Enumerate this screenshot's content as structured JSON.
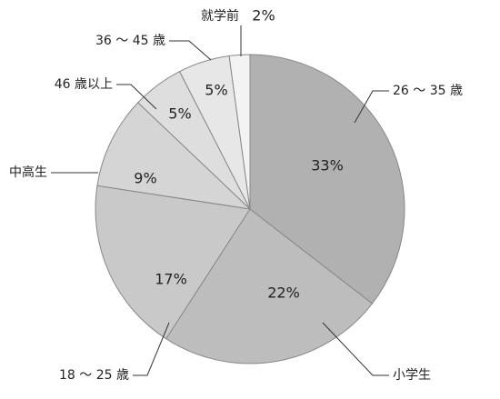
{
  "chart_data": {
    "type": "pie",
    "categories": [
      "26 〜 35 歳",
      "小学生",
      "18 〜 25 歳",
      "中高生",
      "46 歳以上",
      "36 〜 45 歳",
      "就学前"
    ],
    "values": [
      33,
      22,
      17,
      9,
      5,
      5,
      2
    ],
    "value_labels": [
      "33%",
      "22%",
      "17%",
      "9%",
      "5%",
      "5%",
      "2%"
    ],
    "colors": [
      "#b1b1b1",
      "#bdbdbd",
      "#c9c9c9",
      "#d5d5d5",
      "#dedede",
      "#e7e7e7",
      "#f3f3f3"
    ]
  }
}
